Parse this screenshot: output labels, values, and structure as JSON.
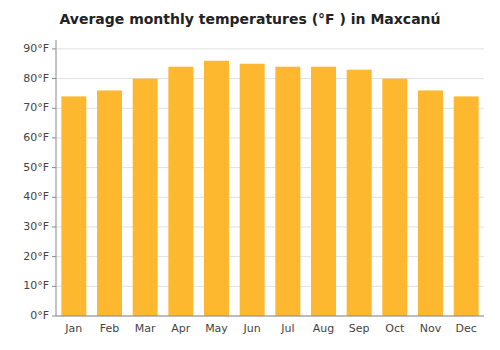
{
  "chart_data": {
    "type": "bar",
    "title": "Average monthly temperatures (°F ) in Maxcanú",
    "categories": [
      "Jan",
      "Feb",
      "Mar",
      "Apr",
      "May",
      "Jun",
      "Jul",
      "Aug",
      "Sep",
      "Oct",
      "Nov",
      "Dec"
    ],
    "values": [
      74,
      76,
      80,
      84,
      86,
      85,
      84,
      84,
      83,
      80,
      76,
      74
    ],
    "color": "#FDB830",
    "ylim": [
      0,
      93
    ],
    "yticks": [
      {
        "value": 0,
        "label": "0°F"
      },
      {
        "value": 10,
        "label": "10°F"
      },
      {
        "value": 20,
        "label": "20°F"
      },
      {
        "value": 30,
        "label": "30°F"
      },
      {
        "value": 40,
        "label": "40°F"
      },
      {
        "value": 50,
        "label": "50°F"
      },
      {
        "value": 60,
        "label": "60°F"
      },
      {
        "value": 70,
        "label": "70°F"
      },
      {
        "value": 80,
        "label": "80°F"
      },
      {
        "value": 90,
        "label": "90°F"
      }
    ],
    "grid": true
  }
}
